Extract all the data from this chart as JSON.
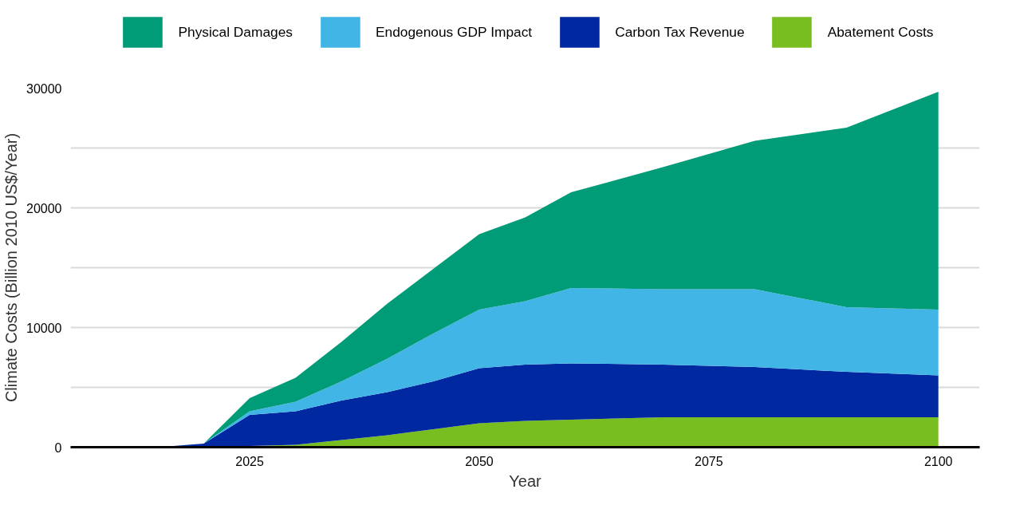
{
  "chart_data": {
    "type": "area",
    "stacked": true,
    "xlabel": "Year",
    "ylabel": "Climate Costs (Billion 2010 US$/Year)",
    "x": [
      2010,
      2015,
      2020,
      2025,
      2030,
      2035,
      2040,
      2045,
      2050,
      2055,
      2060,
      2070,
      2080,
      2090,
      2100
    ],
    "series": [
      {
        "name": "Abatement Costs",
        "color": "#78be20",
        "values": [
          0,
          0,
          0,
          100,
          200,
          600,
          1000,
          1500,
          2000,
          2200,
          2300,
          2500,
          2500,
          2500,
          2500
        ]
      },
      {
        "name": "Carbon Tax Revenue",
        "color": "#0028a0",
        "values": [
          0,
          0,
          300,
          2600,
          2800,
          3300,
          3600,
          4000,
          4600,
          4700,
          4700,
          4400,
          4200,
          3800,
          3500
        ]
      },
      {
        "name": "Endogenous GDP Impact",
        "color": "#41b6e6",
        "values": [
          0,
          0,
          0,
          300,
          800,
          1600,
          2800,
          4000,
          4900,
          5300,
          6300,
          6300,
          6500,
          5400,
          5500
        ]
      },
      {
        "name": "Physical Damages",
        "color": "#009b77",
        "values": [
          0,
          0,
          0,
          1100,
          2000,
          3300,
          4600,
          5400,
          6300,
          7000,
          8000,
          10200,
          12400,
          15000,
          18200
        ]
      }
    ],
    "xlim": [
      2005.5,
      2104.5
    ],
    "xticks": [
      2025,
      2050,
      2075,
      2100
    ],
    "ylim": [
      0,
      30000
    ],
    "yticks": [
      0,
      {
        "value": 5000,
        "label": null
      },
      10000,
      {
        "value": 15000,
        "label": null
      },
      20000,
      {
        "value": 25000,
        "label": null
      },
      30000
    ],
    "grid": "y",
    "legend": "top"
  }
}
